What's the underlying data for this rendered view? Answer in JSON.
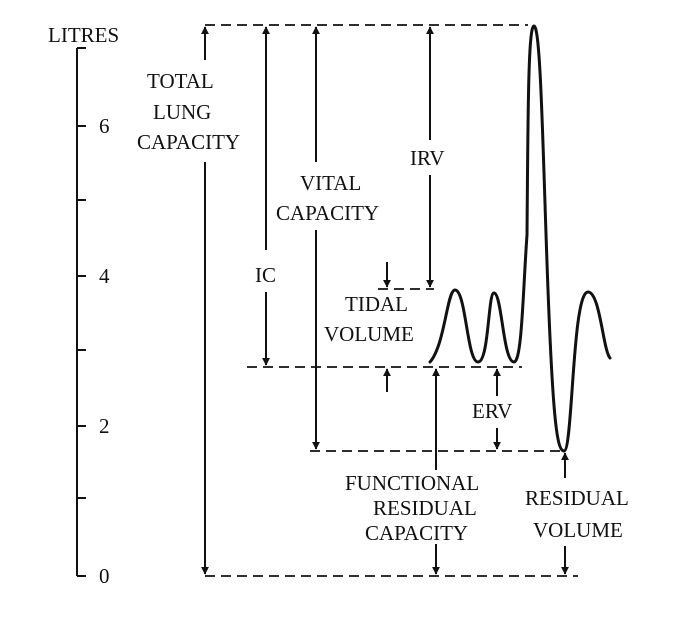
{
  "axis": {
    "unit_label": "LITRES",
    "ticks": [
      {
        "label": "6",
        "value": 6
      },
      {
        "label": "4",
        "value": 4
      },
      {
        "label": "2",
        "value": 2
      },
      {
        "label": "0",
        "value": 0
      }
    ]
  },
  "labels": {
    "tlc": [
      "TOTAL",
      "LUNG",
      "CAPACITY"
    ],
    "vc": [
      "VITAL",
      "CAPACITY"
    ],
    "ic": "IC",
    "irv": "IRV",
    "tv": [
      "TIDAL",
      "VOLUME"
    ],
    "erv": "ERV",
    "frc": [
      "FUNCTIONAL",
      "RESIDUAL",
      "CAPACITY"
    ],
    "rv": [
      "RESIDUAL",
      "VOLUME"
    ]
  },
  "volumes": {
    "total_lung_capacity": 7.0,
    "tidal_peak": 3.8,
    "functional_residual_capacity": 2.75,
    "residual_volume": 1.65,
    "zero": 0
  },
  "colors": {
    "ink": "#111111",
    "background": "#ffffff"
  }
}
